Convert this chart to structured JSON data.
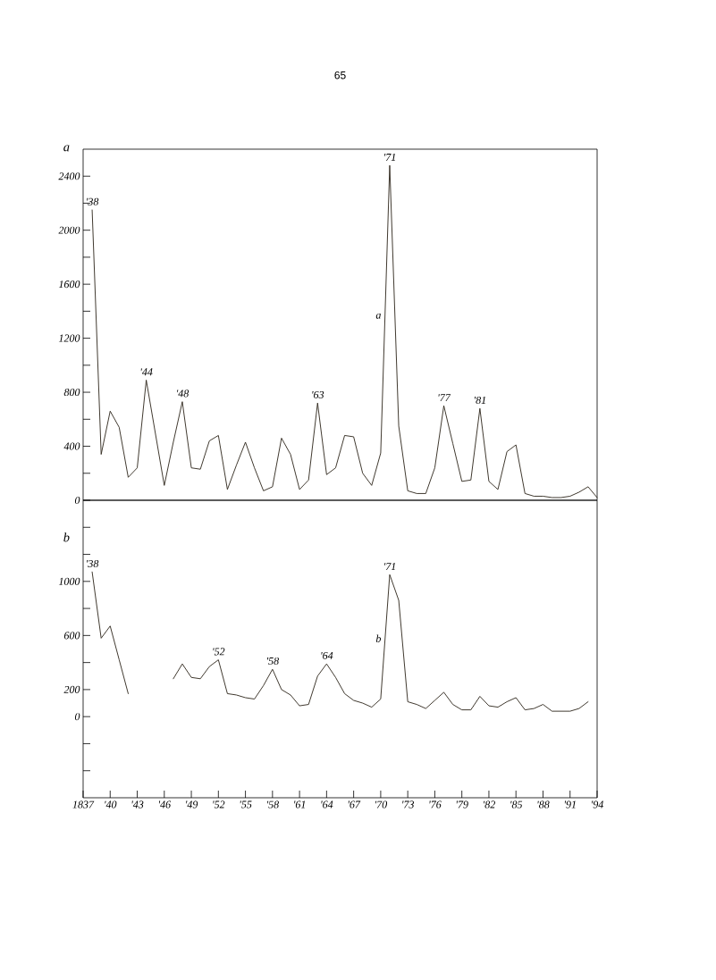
{
  "chart_data": [
    {
      "type": "line",
      "ylabel": "a",
      "annotations": [
        "65",
        {
          "text": "'38",
          "x": 1838,
          "y": 2150
        },
        {
          "text": "'44",
          "x": 1844,
          "y": 890
        },
        {
          "text": "'48",
          "x": 1848,
          "y": 730
        },
        {
          "text": "'63",
          "x": 1863,
          "y": 720
        },
        {
          "text": "'71",
          "x": 1871,
          "y": 2480
        },
        {
          "text": "'77",
          "x": 1877,
          "y": 700
        },
        {
          "text": "'81",
          "x": 1881,
          "y": 680
        }
      ],
      "x": [
        1838,
        1839,
        1840,
        1841,
        1842,
        1843,
        1844,
        1845,
        1846,
        1847,
        1848,
        1849,
        1850,
        1851,
        1852,
        1853,
        1854,
        1855,
        1856,
        1857,
        1858,
        1859,
        1860,
        1861,
        1862,
        1863,
        1864,
        1865,
        1866,
        1867,
        1868,
        1869,
        1870,
        1871,
        1872,
        1873,
        1874,
        1875,
        1876,
        1877,
        1878,
        1879,
        1880,
        1881,
        1882,
        1883,
        1884,
        1885,
        1886,
        1887,
        1888,
        1889,
        1890,
        1891,
        1892,
        1893,
        1894
      ],
      "series": [
        {
          "name": "a",
          "color": "#2b2418",
          "values": [
            2150,
            340,
            660,
            540,
            170,
            240,
            890,
            500,
            110,
            430,
            730,
            240,
            230,
            440,
            480,
            80,
            260,
            430,
            240,
            70,
            100,
            460,
            340,
            80,
            150,
            720,
            190,
            240,
            480,
            470,
            200,
            110,
            350,
            2480,
            550,
            70,
            50,
            50,
            240,
            700,
            420,
            140,
            150,
            680,
            140,
            80,
            360,
            410,
            50,
            30,
            30,
            20,
            20,
            30,
            60,
            100,
            20
          ]
        }
      ],
      "xlim": [
        1837,
        1894
      ],
      "ylim": [
        0,
        2600
      ],
      "yticks": [
        0,
        {
          "value": 200,
          "label": null
        },
        400,
        {
          "value": 600,
          "label": null
        },
        800,
        {
          "value": 1000,
          "label": null
        },
        1200,
        {
          "value": 1400,
          "label": null
        },
        1600,
        {
          "value": 1800,
          "label": null
        },
        2000,
        {
          "value": 2200,
          "label": null
        },
        2400
      ],
      "tick_labels": "y",
      "line_style": "solid"
    },
    {
      "type": "line",
      "ylabel": "b",
      "annotations": [
        {
          "text": "'38",
          "x": 1838,
          "y": 1070
        },
        {
          "text": "'52",
          "x": 1852,
          "y": 420
        },
        {
          "text": "'58",
          "x": 1858,
          "y": 350
        },
        {
          "text": "'64",
          "x": 1864,
          "y": 390
        },
        {
          "text": "'71",
          "x": 1871,
          "y": 1050
        }
      ],
      "x": [
        1838,
        1839,
        1840,
        1841,
        1842,
        1843,
        1844,
        1845,
        1846,
        1847,
        1848,
        1849,
        1850,
        1851,
        1852,
        1853,
        1854,
        1855,
        1856,
        1857,
        1858,
        1859,
        1860,
        1861,
        1862,
        1863,
        1864,
        1865,
        1866,
        1867,
        1868,
        1869,
        1870,
        1871,
        1872,
        1873,
        1874,
        1875,
        1876,
        1877,
        1878,
        1879,
        1880,
        1881,
        1882,
        1883,
        1884,
        1885,
        1886,
        1887,
        1888,
        1889,
        1890,
        1891,
        1892,
        1893
      ],
      "series": [
        {
          "name": "b",
          "color": "#2b2418",
          "values": [
            1070,
            580,
            670,
            420,
            170,
            null,
            null,
            null,
            null,
            280,
            390,
            290,
            280,
            370,
            420,
            170,
            160,
            140,
            130,
            230,
            350,
            200,
            160,
            80,
            90,
            300,
            390,
            290,
            170,
            120,
            100,
            70,
            130,
            1050,
            860,
            110,
            90,
            60,
            120,
            180,
            90,
            50,
            50,
            150,
            80,
            70,
            110,
            140,
            50,
            60,
            90,
            40,
            40,
            40,
            60,
            110
          ]
        }
      ],
      "xlim": [
        1837,
        1894
      ],
      "ylim": [
        -600,
        1600
      ],
      "xticks": [
        1837,
        {
          "value": 1840,
          "label": "'40"
        },
        {
          "value": 1843,
          "label": "'43"
        },
        {
          "value": 1846,
          "label": "'46"
        },
        {
          "value": 1849,
          "label": "'49"
        },
        {
          "value": 1852,
          "label": "'52"
        },
        {
          "value": 1855,
          "label": "'55"
        },
        {
          "value": 1858,
          "label": "'58"
        },
        {
          "value": 1861,
          "label": "'61"
        },
        {
          "value": 1864,
          "label": "'64"
        },
        {
          "value": 1867,
          "label": "'67"
        },
        {
          "value": 1870,
          "label": "'70"
        },
        {
          "value": 1873,
          "label": "'73"
        },
        {
          "value": 1876,
          "label": "'76"
        },
        {
          "value": 1879,
          "label": "'79"
        },
        {
          "value": 1882,
          "label": "'82"
        },
        {
          "value": 1885,
          "label": "'85"
        },
        {
          "value": 1888,
          "label": "'88"
        },
        {
          "value": 1891,
          "label": "'91"
        },
        {
          "value": 1894,
          "label": "'94"
        }
      ],
      "yticks": [
        {
          "value": -400,
          "label": null
        },
        {
          "value": -200,
          "label": null
        },
        0,
        200,
        {
          "value": 400,
          "label": null
        },
        600,
        {
          "value": 800,
          "label": null
        },
        1000,
        {
          "value": 1200,
          "label": null
        },
        {
          "value": 1400,
          "label": null
        }
      ],
      "line_style": "solid"
    }
  ]
}
